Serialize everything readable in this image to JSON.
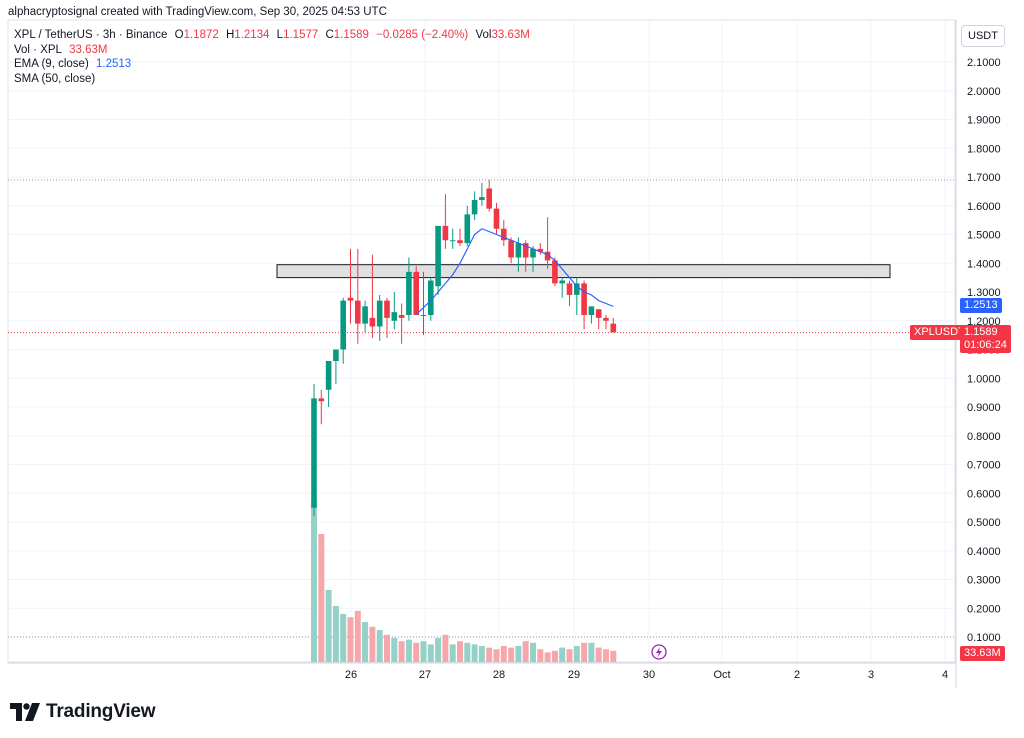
{
  "credit": "alphacryptosignal created with TradingView.com, Sep 30, 2025 04:53 UTC",
  "legend": {
    "symbol": "XPL / TetherUS · 3h · Binance",
    "open_label": "O",
    "open": "1.1872",
    "high_label": "H",
    "high": "1.2134",
    "low_label": "L",
    "low": "1.1577",
    "close_label": "C",
    "close": "1.1589",
    "change": "−0.0285 (−2.40%)",
    "vol_label": "Vol",
    "vol": "33.63M",
    "vol_indicator": "Vol · XPL",
    "vol_indicator_value": "33.63M",
    "ema": "EMA (9, close)",
    "ema_value": "1.2513",
    "sma": "SMA (50, close)"
  },
  "currency": "USDT",
  "price_labels": {
    "ema": "1.2513",
    "symbol": "XPLUSDT",
    "last": "1.1589",
    "countdown": "01:06:24",
    "volume": "33.63M"
  },
  "brand": "TradingView",
  "colors": {
    "up": "#089981",
    "down": "#f23645",
    "vol_up": "#94d1c6",
    "vol_down": "#f7a7ab",
    "ema": "#2962ff",
    "zone_fill": "#e0e0e0"
  },
  "chart_data": {
    "type": "candlestick",
    "y_axis": {
      "min": 0.1,
      "max": 2.1,
      "step": 0.1,
      "ticks": [
        "2.1000",
        "2.0000",
        "1.9000",
        "1.8000",
        "1.7000",
        "1.6000",
        "1.5000",
        "1.4000",
        "1.3000",
        "1.2000",
        "1.1000",
        "1.0000",
        "0.9000",
        "0.8000",
        "0.7000",
        "0.6000",
        "0.5000",
        "0.4000",
        "0.3000",
        "0.2000",
        "0.1000"
      ]
    },
    "x_axis": {
      "ticks": [
        "26",
        "27",
        "28",
        "29",
        "30",
        "Oct",
        "2",
        "3",
        "4"
      ]
    },
    "reference_lines": [
      1.69,
      1.1589,
      0.1
    ],
    "zone": {
      "low": 1.35,
      "high": 1.395,
      "from_index": 0,
      "to_end": true
    },
    "candles": [
      {
        "o": 0.55,
        "h": 0.98,
        "l": 0.52,
        "c": 0.93
      },
      {
        "o": 0.93,
        "h": 0.96,
        "l": 0.84,
        "c": 0.92
      },
      {
        "o": 0.96,
        "h": 1.05,
        "l": 0.9,
        "c": 1.06
      },
      {
        "o": 1.06,
        "h": 1.09,
        "l": 0.98,
        "c": 1.1
      },
      {
        "o": 1.1,
        "h": 1.28,
        "l": 1.05,
        "c": 1.27
      },
      {
        "o": 1.28,
        "h": 1.45,
        "l": 1.19,
        "c": 1.27
      },
      {
        "o": 1.27,
        "h": 1.45,
        "l": 1.12,
        "c": 1.19
      },
      {
        "o": 1.19,
        "h": 1.27,
        "l": 1.16,
        "c": 1.25
      },
      {
        "o": 1.21,
        "h": 1.43,
        "l": 1.14,
        "c": 1.18
      },
      {
        "o": 1.18,
        "h": 1.29,
        "l": 1.13,
        "c": 1.27
      },
      {
        "o": 1.27,
        "h": 1.28,
        "l": 1.14,
        "c": 1.21
      },
      {
        "o": 1.2,
        "h": 1.3,
        "l": 1.17,
        "c": 1.23
      },
      {
        "o": 1.22,
        "h": 1.26,
        "l": 1.12,
        "c": 1.21
      },
      {
        "o": 1.22,
        "h": 1.42,
        "l": 1.2,
        "c": 1.37
      },
      {
        "o": 1.37,
        "h": 1.39,
        "l": 1.22,
        "c": 1.22
      },
      {
        "o": 1.22,
        "h": 1.37,
        "l": 1.15,
        "c": 1.22
      },
      {
        "o": 1.22,
        "h": 1.35,
        "l": 1.2,
        "c": 1.34
      },
      {
        "o": 1.32,
        "h": 1.53,
        "l": 1.29,
        "c": 1.53
      },
      {
        "o": 1.53,
        "h": 1.64,
        "l": 1.45,
        "c": 1.48
      },
      {
        "o": 1.48,
        "h": 1.52,
        "l": 1.45,
        "c": 1.48
      },
      {
        "o": 1.48,
        "h": 1.52,
        "l": 1.46,
        "c": 1.47
      },
      {
        "o": 1.47,
        "h": 1.6,
        "l": 1.46,
        "c": 1.57
      },
      {
        "o": 1.57,
        "h": 1.65,
        "l": 1.55,
        "c": 1.62
      },
      {
        "o": 1.62,
        "h": 1.68,
        "l": 1.6,
        "c": 1.63
      },
      {
        "o": 1.66,
        "h": 1.69,
        "l": 1.58,
        "c": 1.59
      },
      {
        "o": 1.59,
        "h": 1.61,
        "l": 1.5,
        "c": 1.52
      },
      {
        "o": 1.52,
        "h": 1.55,
        "l": 1.46,
        "c": 1.48
      },
      {
        "o": 1.48,
        "h": 1.49,
        "l": 1.4,
        "c": 1.42
      },
      {
        "o": 1.42,
        "h": 1.49,
        "l": 1.37,
        "c": 1.47
      },
      {
        "o": 1.47,
        "h": 1.48,
        "l": 1.37,
        "c": 1.42
      },
      {
        "o": 1.42,
        "h": 1.46,
        "l": 1.37,
        "c": 1.45
      },
      {
        "o": 1.45,
        "h": 1.47,
        "l": 1.43,
        "c": 1.44
      },
      {
        "o": 1.44,
        "h": 1.56,
        "l": 1.38,
        "c": 1.41
      },
      {
        "o": 1.41,
        "h": 1.42,
        "l": 1.32,
        "c": 1.33
      },
      {
        "o": 1.33,
        "h": 1.35,
        "l": 1.28,
        "c": 1.34
      },
      {
        "o": 1.33,
        "h": 1.34,
        "l": 1.25,
        "c": 1.29
      },
      {
        "o": 1.29,
        "h": 1.35,
        "l": 1.22,
        "c": 1.33
      },
      {
        "o": 1.33,
        "h": 1.34,
        "l": 1.17,
        "c": 1.22
      },
      {
        "o": 1.22,
        "h": 1.25,
        "l": 1.19,
        "c": 1.25
      },
      {
        "o": 1.24,
        "h": 1.24,
        "l": 1.17,
        "c": 1.21
      },
      {
        "o": 1.21,
        "h": 1.22,
        "l": 1.17,
        "c": 1.2
      },
      {
        "o": 1.19,
        "h": 1.21,
        "l": 1.16,
        "c": 1.16
      }
    ],
    "volume_relative": [
      1.0,
      0.8,
      0.45,
      0.35,
      0.3,
      0.28,
      0.32,
      0.25,
      0.22,
      0.2,
      0.17,
      0.15,
      0.13,
      0.14,
      0.12,
      0.13,
      0.11,
      0.15,
      0.17,
      0.11,
      0.13,
      0.12,
      0.11,
      0.1,
      0.09,
      0.08,
      0.1,
      0.09,
      0.1,
      0.13,
      0.12,
      0.08,
      0.06,
      0.07,
      0.09,
      0.08,
      0.1,
      0.12,
      0.12,
      0.09,
      0.08,
      0.07
    ],
    "ema": [
      [
        14,
        1.222
      ],
      [
        16,
        1.27
      ],
      [
        18,
        1.33
      ],
      [
        19,
        1.36
      ],
      [
        20,
        1.4
      ],
      [
        21,
        1.45
      ],
      [
        22,
        1.5
      ],
      [
        23,
        1.52
      ],
      [
        24,
        1.51
      ],
      [
        25,
        1.5
      ],
      [
        26,
        1.49
      ],
      [
        27,
        1.48
      ],
      [
        28,
        1.47
      ],
      [
        29,
        1.46
      ],
      [
        30,
        1.45
      ],
      [
        31,
        1.44
      ],
      [
        32,
        1.43
      ],
      [
        33,
        1.41
      ],
      [
        34,
        1.38
      ],
      [
        35,
        1.35
      ],
      [
        36,
        1.32
      ],
      [
        37,
        1.3
      ],
      [
        38,
        1.29
      ],
      [
        39,
        1.27
      ],
      [
        40,
        1.26
      ],
      [
        41,
        1.25
      ]
    ]
  }
}
